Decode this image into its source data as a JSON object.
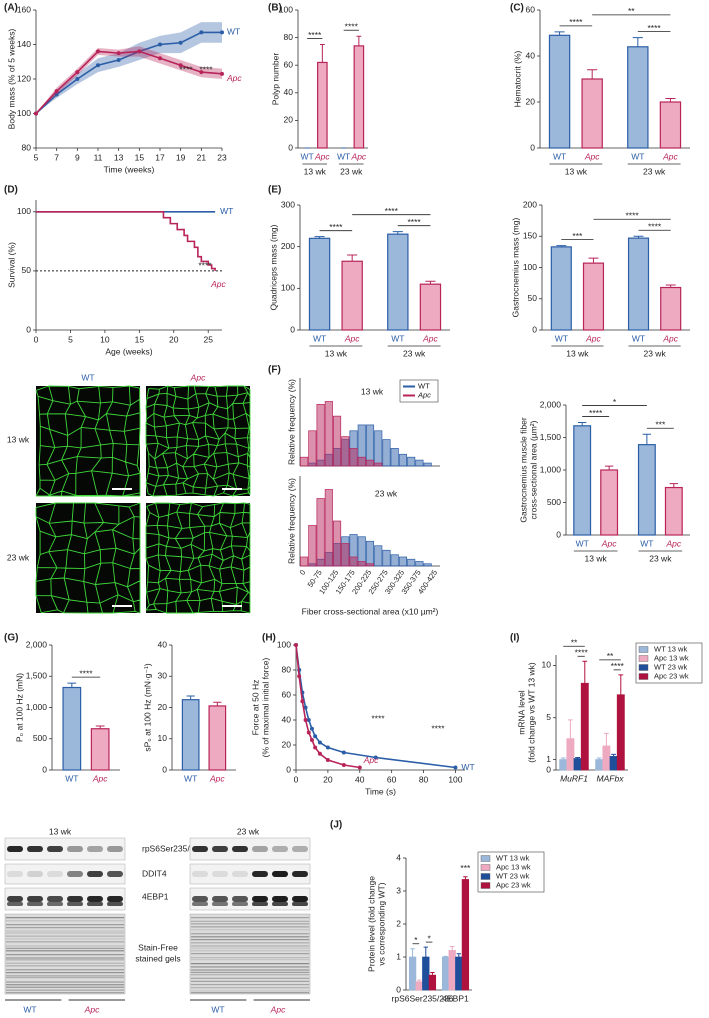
{
  "chart_data": [
    {
      "type": "line",
      "panel": "(A)",
      "ylabel": "Body mass (% of 5 weeks)",
      "xlabel": "Time (weeks)",
      "x": [
        5,
        7,
        9,
        11,
        13,
        15,
        17,
        19,
        21,
        23
      ],
      "xlim": [
        5,
        23
      ],
      "xticks": [
        5,
        7,
        9,
        11,
        13,
        15,
        17,
        19,
        21,
        23
      ],
      "ylim": [
        80,
        160
      ],
      "yticks": [
        80,
        100,
        120,
        140,
        160
      ],
      "series": [
        {
          "name": "WT",
          "color": "#2b5ea7",
          "values": [
            100,
            111,
            120,
            128,
            131,
            136,
            140,
            141,
            147,
            147
          ],
          "errors": [
            0,
            2,
            3,
            4,
            4,
            5,
            5,
            6,
            6,
            6
          ]
        },
        {
          "name": "Apc",
          "color": "#b8245a",
          "values": [
            100,
            113,
            124,
            136,
            135,
            136,
            132,
            128,
            124,
            123
          ],
          "errors": [
            0,
            2,
            2,
            2,
            2,
            3,
            3,
            3,
            3,
            3
          ]
        }
      ],
      "annotations": [
        "****",
        "****"
      ]
    },
    {
      "type": "bar",
      "panel": "(B)",
      "ylabel": "Polyp number",
      "categories": [
        "WT",
        "Apc",
        "WT",
        "Apc"
      ],
      "groups": [
        "13 wk",
        "23 wk"
      ],
      "values": [
        0,
        62,
        0,
        74
      ],
      "errors": [
        0,
        13,
        0,
        7
      ],
      "colors": [
        "#9bb7d9",
        "#eeaac0",
        "#9bb7d9",
        "#eeaac0"
      ],
      "edges": [
        "#2b5ea7",
        "#b8245a",
        "#2b5ea7",
        "#b8245a"
      ],
      "ylim": [
        0,
        100
      ],
      "yticks": [
        0,
        20,
        40,
        60,
        80,
        100
      ],
      "brackets": [
        {
          "text": "****",
          "between": [
            0,
            1
          ]
        },
        {
          "text": "****",
          "between": [
            2,
            3
          ]
        }
      ]
    },
    {
      "type": "bar",
      "panel": "(C)",
      "ylabel": "Hematocrit (%)",
      "categories": [
        "WT",
        "Apc",
        "WT",
        "Apc"
      ],
      "groups": [
        "13 wk",
        "23 wk"
      ],
      "values": [
        49,
        30,
        44,
        20
      ],
      "errors": [
        1.5,
        4,
        4,
        1.5
      ],
      "colors": [
        "#9bb7d9",
        "#eeaac0",
        "#9bb7d9",
        "#eeaac0"
      ],
      "edges": [
        "#2b5ea7",
        "#b8245a",
        "#2b5ea7",
        "#b8245a"
      ],
      "ylim": [
        0,
        60
      ],
      "yticks": [
        0,
        20,
        40,
        60
      ],
      "brackets": [
        {
          "text": "****",
          "between": [
            0,
            1
          ]
        },
        {
          "text": "****",
          "between": [
            2,
            3
          ]
        },
        {
          "text": "**",
          "between": [
            1,
            3
          ]
        }
      ]
    },
    {
      "type": "step",
      "panel": "(D)",
      "ylabel": "Survival (%)",
      "xlabel": "Age (weeks)",
      "xlim": [
        0,
        27
      ],
      "xticks": [
        0,
        5,
        10,
        15,
        20,
        25
      ],
      "ylim": [
        0,
        110
      ],
      "yticks": [
        0,
        50,
        100
      ],
      "hline": 50,
      "series": [
        {
          "name": "WT",
          "color": "#2b5ea7",
          "x": [
            0,
            26
          ],
          "values": [
            100,
            100
          ]
        },
        {
          "name": "Apc",
          "color": "#b8245a",
          "x": [
            0,
            18.5,
            19.5,
            20.5,
            21.5,
            22,
            23,
            23.5,
            24,
            25,
            25.5,
            26
          ],
          "values": [
            100,
            95,
            90,
            85,
            80,
            75,
            70,
            62,
            58,
            55,
            52,
            50
          ]
        }
      ],
      "annotations": [
        "****"
      ]
    },
    {
      "type": "bar",
      "panel": "(E)",
      "ylabel": "Quadriceps mass (mg)",
      "categories": [
        "WT",
        "Apc",
        "WT",
        "Apc"
      ],
      "groups": [
        "13 wk",
        "23 wk"
      ],
      "values": [
        220,
        165,
        230,
        110
      ],
      "errors": [
        4,
        15,
        6,
        7
      ],
      "colors": [
        "#9bb7d9",
        "#eeaac0",
        "#9bb7d9",
        "#eeaac0"
      ],
      "edges": [
        "#2b5ea7",
        "#b8245a",
        "#2b5ea7",
        "#b8245a"
      ],
      "ylim": [
        0,
        300
      ],
      "yticks": [
        0,
        100,
        200,
        300
      ],
      "brackets": [
        {
          "text": "****",
          "between": [
            0,
            1
          ]
        },
        {
          "text": "****",
          "between": [
            2,
            3
          ]
        },
        {
          "text": "****",
          "between": [
            1,
            3
          ]
        }
      ]
    },
    {
      "type": "bar",
      "ylabel": "Gastrocnemius mass (mg)",
      "categories": [
        "WT",
        "Apc",
        "WT",
        "Apc"
      ],
      "groups": [
        "13 wk",
        "23 wk"
      ],
      "values": [
        133,
        107,
        147,
        68
      ],
      "errors": [
        2,
        8,
        3,
        4
      ],
      "colors": [
        "#9bb7d9",
        "#eeaac0",
        "#9bb7d9",
        "#eeaac0"
      ],
      "edges": [
        "#2b5ea7",
        "#b8245a",
        "#2b5ea7",
        "#b8245a"
      ],
      "ylim": [
        0,
        200
      ],
      "yticks": [
        0,
        50,
        100,
        150,
        200
      ],
      "brackets": [
        {
          "text": "***",
          "between": [
            0,
            1
          ]
        },
        {
          "text": "****",
          "between": [
            2,
            3
          ]
        },
        {
          "text": "****",
          "between": [
            1,
            3
          ]
        }
      ]
    },
    {
      "type": "grouped_bar",
      "panel": "(F)",
      "overlay": true,
      "label": "13 wk",
      "ylabel": "Relative frequency (%)",
      "ylim": [
        0,
        30
      ],
      "legend": true,
      "series": [
        {
          "name": "WT",
          "color": "#2b5ea7",
          "values": [
            0,
            1,
            2,
            4,
            6,
            9,
            12,
            14,
            14,
            12,
            9,
            6,
            4,
            3,
            2,
            1,
            0
          ]
        },
        {
          "name": "Apc",
          "color": "#b8245a",
          "values": [
            3,
            12,
            21,
            22,
            17,
            10,
            6,
            3,
            2,
            1,
            0,
            0,
            0,
            0,
            0,
            0,
            0
          ]
        }
      ]
    },
    {
      "type": "grouped_bar",
      "overlay": true,
      "label": "23 wk",
      "ylabel": "Relative frequency (%)",
      "xlabel": "Fiber cross-sectional area (x10 µm²)",
      "ylim": [
        0,
        40
      ],
      "categories": [
        "0",
        null,
        "50-75",
        null,
        "100-125",
        null,
        "150-175",
        null,
        "200-225",
        null,
        "250-275",
        null,
        "300-325",
        null,
        "350-375",
        null,
        "400-425"
      ],
      "series": [
        {
          "color": "#2b5ea7",
          "values": [
            0,
            1,
            3,
            6,
            10,
            13,
            14,
            13,
            11,
            9,
            7,
            5,
            4,
            3,
            2,
            1,
            0
          ]
        },
        {
          "color": "#b8245a",
          "values": [
            4,
            18,
            30,
            34,
            20,
            10,
            4,
            2,
            1,
            0,
            0,
            0,
            0,
            0,
            0,
            0,
            0
          ]
        }
      ]
    },
    {
      "type": "bar",
      "ylabel": [
        "Gastrocnemius muscle fiber",
        "cross-sectional area (µm²)"
      ],
      "categories": [
        "WT",
        "Apc",
        "WT",
        "Apc"
      ],
      "groups": [
        "13 wk",
        "23 wk"
      ],
      "values": [
        1680,
        1000,
        1390,
        730
      ],
      "errors": [
        50,
        60,
        160,
        60
      ],
      "colors": [
        "#9bb7d9",
        "#eeaac0",
        "#9bb7d9",
        "#eeaac0"
      ],
      "edges": [
        "#2b5ea7",
        "#b8245a",
        "#2b5ea7",
        "#b8245a"
      ],
      "ylim": [
        0,
        2000
      ],
      "yticks": [
        0,
        500,
        {
          "value": 1000,
          "label": "1,000"
        },
        {
          "value": 1500,
          "label": "1,500"
        },
        {
          "value": 2000,
          "label": "2,000"
        }
      ],
      "brackets": [
        {
          "text": "****",
          "between": [
            0,
            1
          ]
        },
        {
          "text": "***",
          "between": [
            2,
            3
          ]
        },
        {
          "text": "*",
          "between": [
            0,
            2
          ]
        }
      ]
    },
    {
      "type": "bar",
      "panel": "(G)",
      "ylabel": "P₀ at 100 Hz (mN)",
      "categories": [
        "WT",
        "Apc"
      ],
      "values": [
        1320,
        660
      ],
      "errors": [
        70,
        45
      ],
      "colors": [
        "#9bb7d9",
        "#eeaac0"
      ],
      "edges": [
        "#2b5ea7",
        "#b8245a"
      ],
      "ylim": [
        0,
        2000
      ],
      "yticks": [
        0,
        500,
        {
          "value": 1000,
          "label": "1,000"
        },
        {
          "value": 1500,
          "label": "1,500"
        },
        {
          "value": 2000,
          "label": "2,000"
        }
      ],
      "brackets": [
        {
          "text": "****",
          "between": [
            0,
            1
          ]
        }
      ]
    },
    {
      "type": "bar",
      "ylabel": "sP₀ at 100 Hz (mN·g⁻¹)",
      "categories": [
        "WT",
        "Apc"
      ],
      "values": [
        22.5,
        20.5
      ],
      "errors": [
        1.2,
        1.2
      ],
      "colors": [
        "#9bb7d9",
        "#eeaac0"
      ],
      "edges": [
        "#2b5ea7",
        "#b8245a"
      ],
      "ylim": [
        0,
        40
      ],
      "yticks": [
        0,
        10,
        20,
        30,
        40
      ]
    },
    {
      "type": "line",
      "panel": "(H)",
      "ylabel": [
        "Force at 50 Hz",
        "(% of maximal initial force)"
      ],
      "xlabel": "Time (s)",
      "xlim": [
        0,
        106
      ],
      "xticks": [
        0,
        20,
        40,
        60,
        80,
        100
      ],
      "ylim": [
        0,
        100
      ],
      "yticks": [
        0,
        20,
        40,
        60,
        80,
        100
      ],
      "series": [
        {
          "name": "WT",
          "color": "#2b5ea7",
          "x": [
            0,
            2,
            4,
            6,
            8,
            10,
            12,
            15,
            20,
            30,
            50,
            100
          ],
          "values": [
            100,
            80,
            62,
            50,
            40,
            33,
            27,
            22,
            18,
            14,
            10,
            2
          ]
        },
        {
          "name": "Apc",
          "color": "#b8245a",
          "x": [
            0,
            2,
            4,
            6,
            8,
            10,
            12,
            15,
            20,
            30,
            40
          ],
          "values": [
            100,
            75,
            55,
            40,
            30,
            24,
            18,
            13,
            8,
            4,
            2
          ]
        }
      ],
      "annotations": [
        "****",
        "****"
      ]
    },
    {
      "type": "grouped_bar",
      "panel": "(I)",
      "ylabel": [
        "mRNA level",
        "(fold change vs WT 13 wk)"
      ],
      "categories": [
        "MuRF1",
        "MAFbx"
      ],
      "ylim": [
        0,
        11
      ],
      "yticks": [
        0,
        1,
        5,
        10
      ],
      "legend": true,
      "series": [
        {
          "name": "WT 13 wk",
          "color": "#9bb7d9",
          "values": [
            1,
            1
          ],
          "errors": [
            0.15,
            0.15
          ]
        },
        {
          "name": "Apc 13 wk",
          "color": "#eeaac0",
          "values": [
            3,
            2.3
          ],
          "errors": [
            1.8,
            1.2
          ]
        },
        {
          "name": "WT 23 wk",
          "color": "#1f4e9a",
          "values": [
            1.1,
            1.3
          ],
          "errors": [
            0.1,
            0.2
          ]
        },
        {
          "name": "Apc 23 wk",
          "color": "#b0123f",
          "values": [
            8.3,
            7.2
          ],
          "errors": [
            2.1,
            1.9
          ]
        }
      ],
      "brackets": [
        {
          "text": "**",
          "category": 0,
          "between": [
            0,
            3
          ]
        },
        {
          "text": "****",
          "category": 0,
          "between": [
            2,
            3
          ]
        },
        {
          "text": "**",
          "category": 1,
          "between": [
            0,
            3
          ]
        },
        {
          "text": "****",
          "category": 1,
          "between": [
            2,
            3
          ]
        }
      ]
    },
    {
      "type": "grouped_bar",
      "panel": "(J)",
      "ylabel": [
        "Protein level (fold change",
        "vs corresponding WT)"
      ],
      "categories": [
        "rpS6Ser235/236",
        "4EBP1"
      ],
      "ylim": [
        0,
        4
      ],
      "yticks": [
        0,
        1,
        2,
        3,
        4
      ],
      "legend": true,
      "series": [
        {
          "name": "WT 13 wk",
          "color": "#9bb7d9",
          "values": [
            1,
            1
          ],
          "errors": [
            0.25,
            0.02
          ]
        },
        {
          "name": "Apc 13 wk",
          "color": "#eeaac0",
          "values": [
            0.25,
            1.2
          ],
          "errors": [
            0.05,
            0.12
          ]
        },
        {
          "name": "WT 23 wk",
          "color": "#1f4e9a",
          "values": [
            1,
            1
          ],
          "errors": [
            0.3,
            0.1
          ]
        },
        {
          "name": "Apc 23 wk",
          "color": "#b0123f",
          "values": [
            0.45,
            3.35
          ],
          "errors": [
            0.08,
            0.08
          ]
        }
      ],
      "brackets": [
        {
          "text": "*",
          "category": 0,
          "between": [
            0,
            1
          ]
        },
        {
          "text": "*",
          "category": 0,
          "between": [
            2,
            3
          ]
        },
        {
          "text": "***",
          "category": 1,
          "between": [
            3,
            3
          ]
        }
      ]
    }
  ],
  "microscopy": {
    "columns": [
      "WT",
      "Apc"
    ],
    "rows": [
      "13 wk",
      "23 wk"
    ]
  },
  "blots": {
    "timepoints": [
      "13 wk",
      "23 wk"
    ],
    "rows": [
      "rpS6Ser235/236",
      "DDIT4",
      "4EBP1"
    ],
    "gel_label": [
      "Stain-Free",
      "stained gels"
    ],
    "groups": [
      "WT",
      "Apc"
    ]
  }
}
